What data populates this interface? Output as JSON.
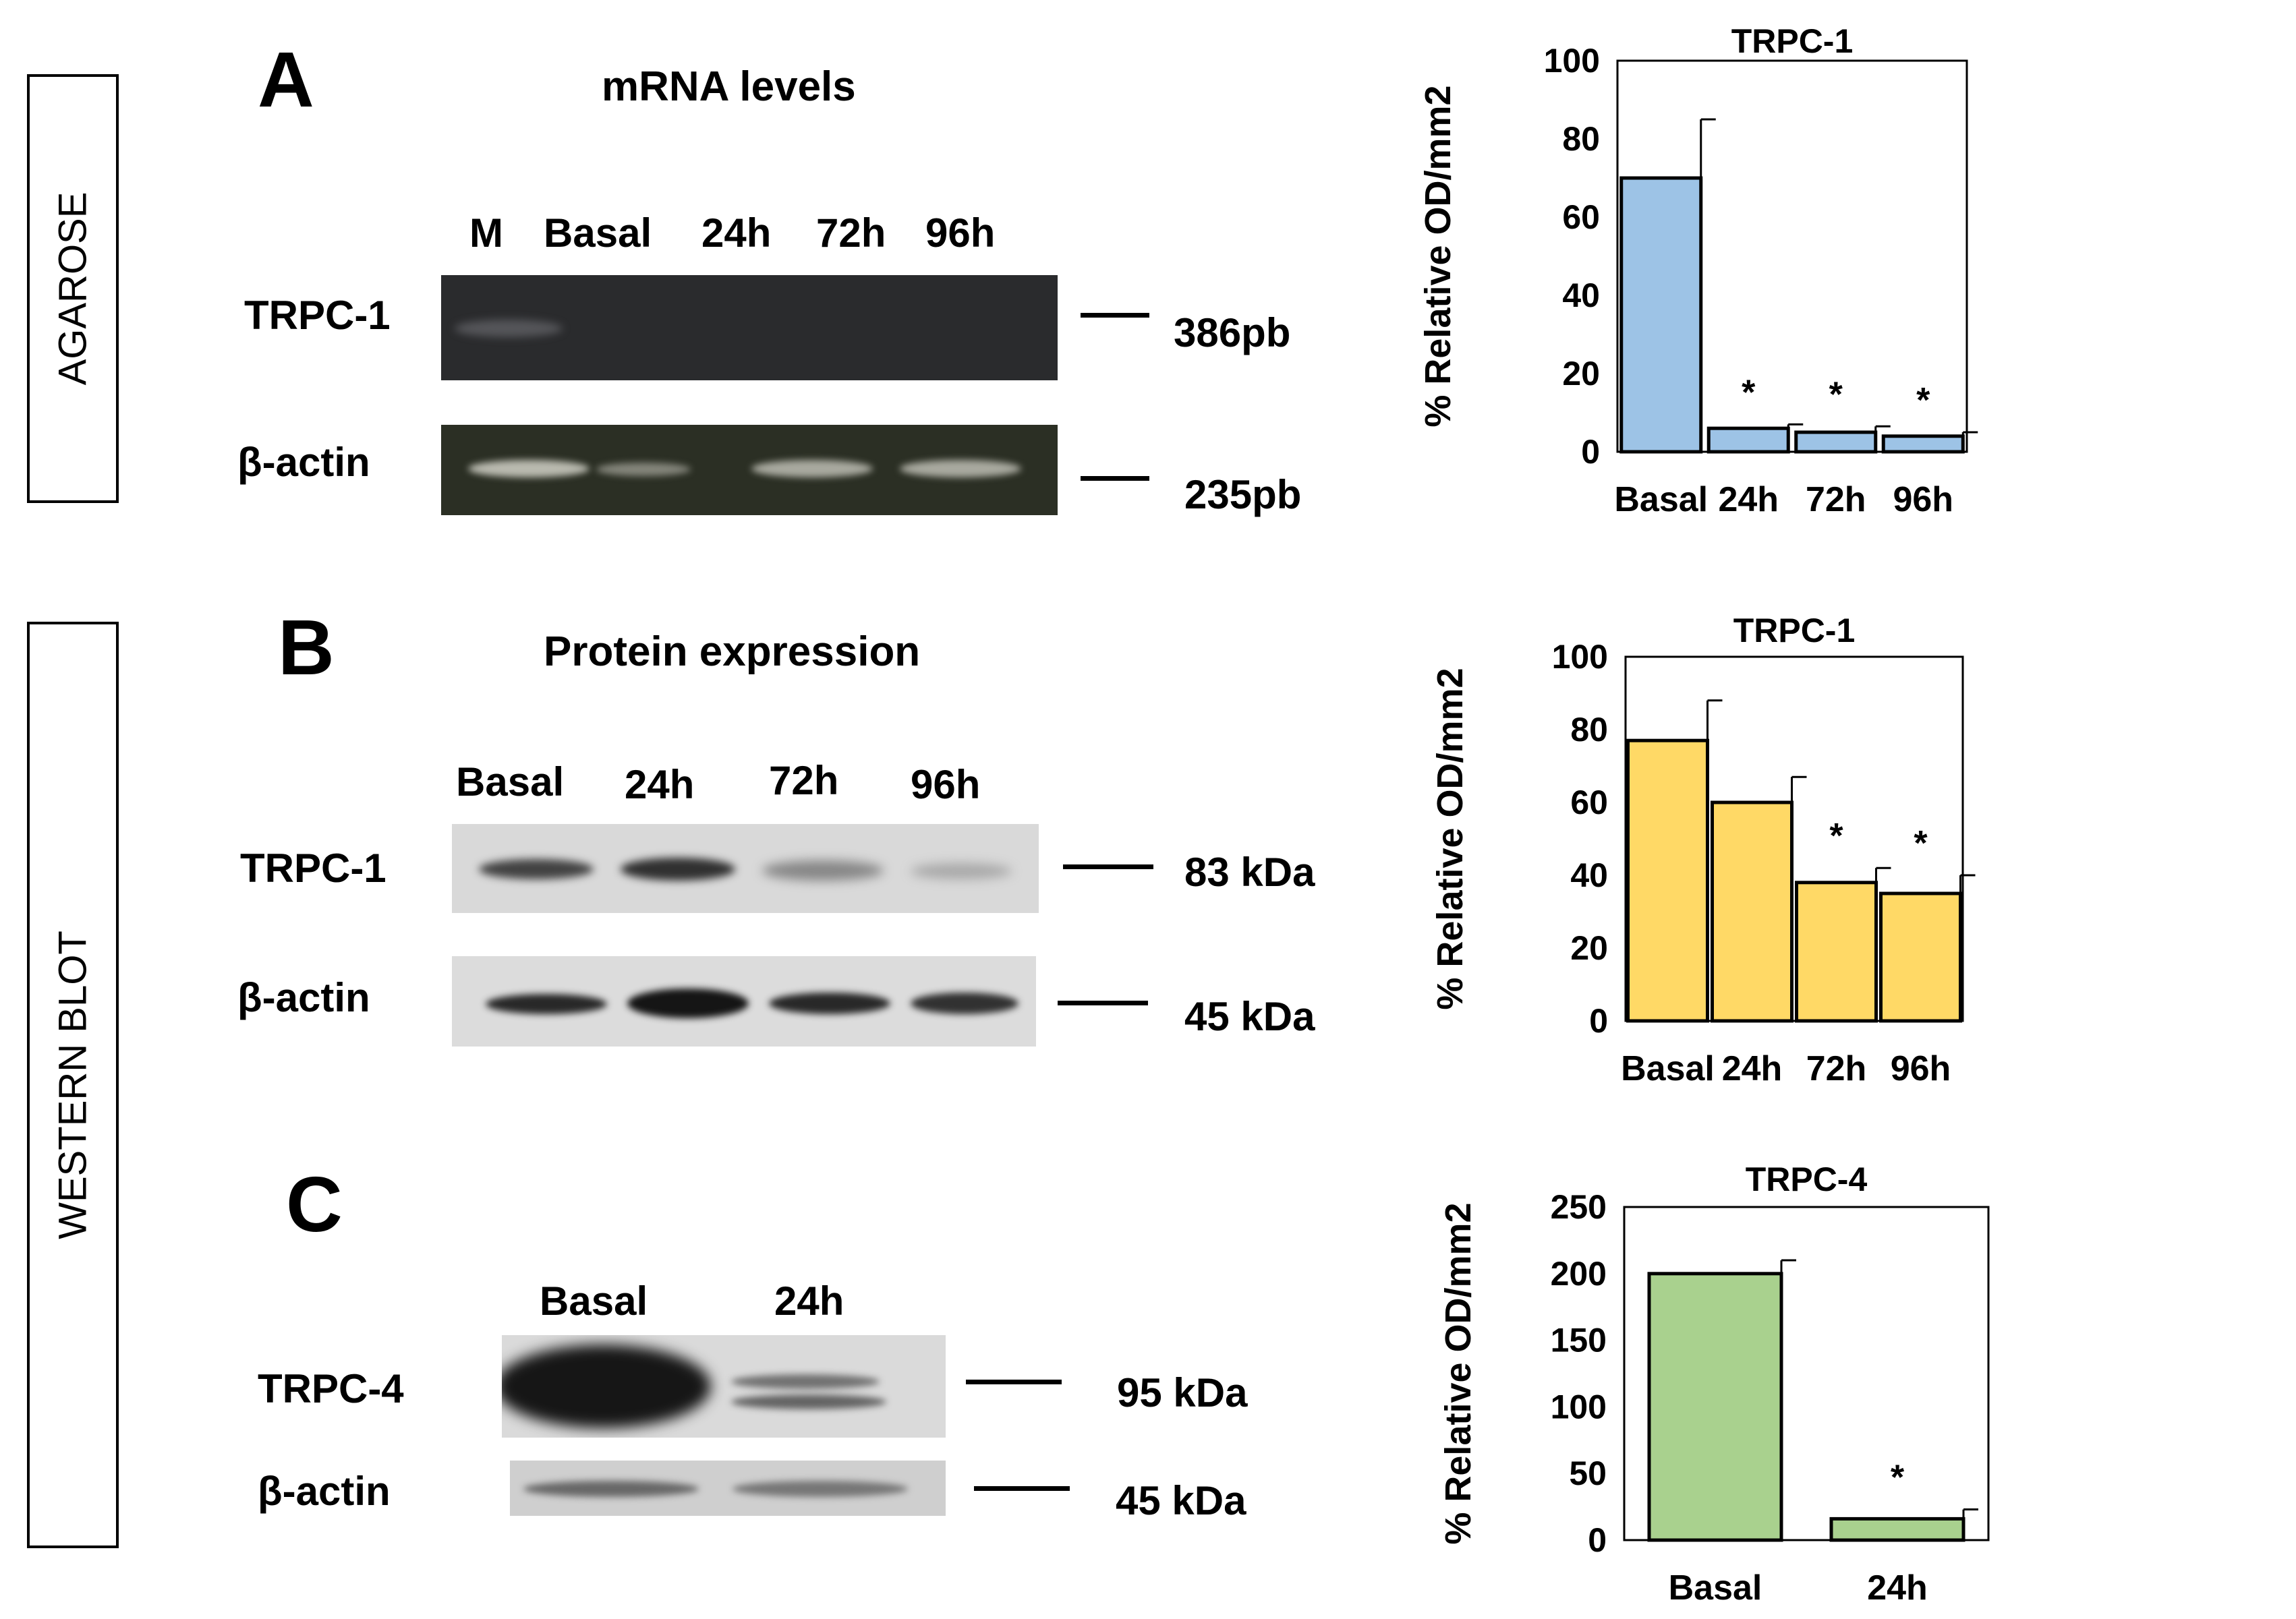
{
  "side_labels": {
    "agarose": "AGAROSE",
    "western_blot": "WESTERN BLOT"
  },
  "panel_a": {
    "letter": "A",
    "heading": "mRNA levels",
    "lanes": [
      "M",
      "Basal",
      "24h",
      "72h",
      "96h"
    ],
    "rows": [
      "TRPC-1",
      "β-actin"
    ],
    "sizes": [
      "386pb",
      "235pb"
    ]
  },
  "panel_b": {
    "letter": "B",
    "heading": "Protein expression",
    "lanes": [
      "Basal",
      "24h",
      "72h",
      "96h"
    ],
    "rows": [
      "TRPC-1",
      "β-actin"
    ],
    "sizes": [
      "83 kDa",
      "45 kDa"
    ]
  },
  "panel_c": {
    "letter": "C",
    "lanes": [
      "Basal",
      "24h"
    ],
    "rows": [
      "TRPC-4",
      "β-actin"
    ],
    "sizes": [
      "95 kDa",
      "45 kDa"
    ]
  },
  "chart_data": [
    {
      "type": "bar",
      "title": "TRPC-1",
      "ylabel": "% Relative OD/mm2",
      "xlabel": "",
      "categories": [
        "Basal",
        "24h",
        "72h",
        "96h"
      ],
      "values": [
        70,
        6,
        5,
        4
      ],
      "errors": [
        15,
        1,
        1.5,
        1
      ],
      "significance": [
        "",
        "*",
        "*",
        "*"
      ],
      "ylim": [
        0,
        100
      ],
      "yticks": [
        0,
        20,
        40,
        60,
        80,
        100
      ],
      "color": "#9DC3E6"
    },
    {
      "type": "bar",
      "title": "TRPC-1",
      "ylabel": "% Relative OD/mm2",
      "xlabel": "",
      "categories": [
        "Basal",
        "24h",
        "72h",
        "96h"
      ],
      "values": [
        77,
        60,
        38,
        35
      ],
      "errors": [
        11,
        7,
        4,
        5
      ],
      "significance": [
        "",
        "",
        "*",
        "*"
      ],
      "ylim": [
        0,
        100
      ],
      "yticks": [
        0,
        20,
        40,
        60,
        80,
        100
      ],
      "color": "#FFD966"
    },
    {
      "type": "bar",
      "title": "TRPC-4",
      "ylabel": "% Relative OD/mm2",
      "xlabel": "",
      "categories": [
        "Basal",
        "24h"
      ],
      "values": [
        200,
        16
      ],
      "errors": [
        10,
        7
      ],
      "significance": [
        "",
        "*"
      ],
      "ylim": [
        0,
        250
      ],
      "yticks": [
        0,
        50,
        100,
        150,
        200,
        250
      ],
      "color": "#A9D18E"
    }
  ]
}
